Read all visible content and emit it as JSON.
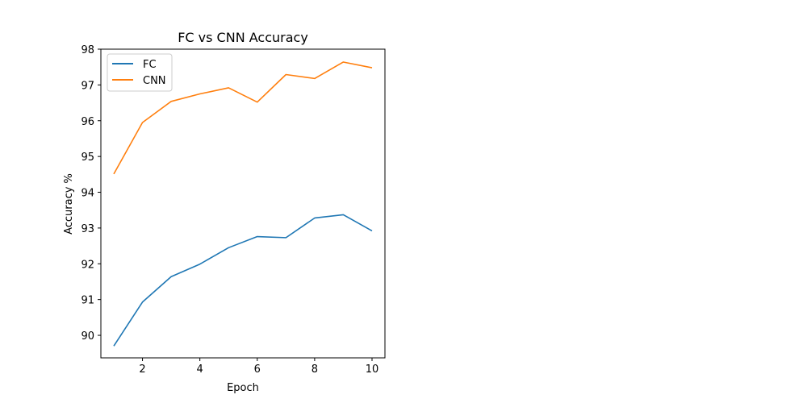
{
  "chart_data": {
    "type": "line",
    "title": "FC vs CNN Accuracy",
    "xlabel": "Epoch",
    "ylabel": "Accuracy %",
    "x": [
      1,
      2,
      3,
      4,
      5,
      6,
      7,
      8,
      9,
      10
    ],
    "xticks": [
      2,
      4,
      6,
      8,
      10
    ],
    "yticks": [
      90,
      91,
      92,
      93,
      94,
      95,
      96,
      97,
      98
    ],
    "xlim": [
      0.55,
      10.45
    ],
    "ylim": [
      89.37,
      98.0
    ],
    "grid": false,
    "legend_position": "top-left",
    "series": [
      {
        "name": "FC",
        "color": "#1f77b4",
        "values": [
          89.7,
          90.93,
          91.64,
          91.99,
          92.45,
          92.76,
          92.73,
          93.28,
          93.37,
          92.92
        ]
      },
      {
        "name": "CNN",
        "color": "#ff7f0e",
        "values": [
          94.51,
          95.95,
          96.54,
          96.75,
          96.92,
          96.52,
          97.29,
          97.18,
          97.64,
          97.48
        ]
      }
    ]
  }
}
